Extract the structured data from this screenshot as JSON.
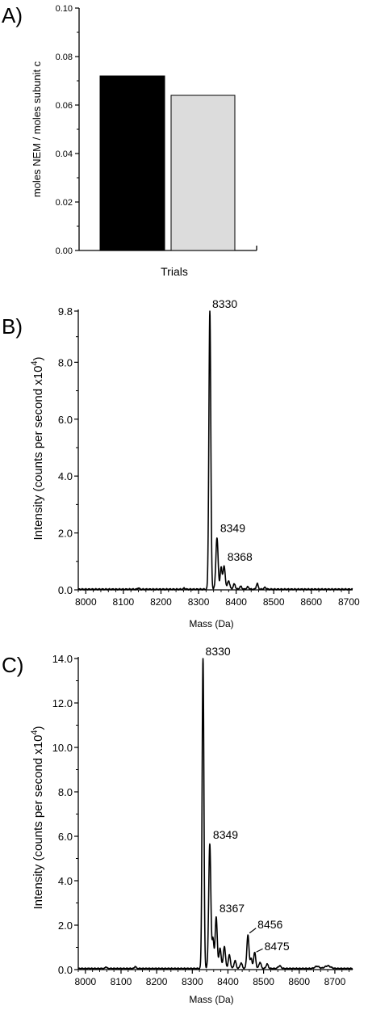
{
  "panels": [
    {
      "id": "A",
      "panel_label": "A)",
      "chart_data": {
        "type": "bar",
        "categories": [
          "",
          ""
        ],
        "values": [
          0.072,
          0.064
        ],
        "colors": [
          "#000000",
          "#dcdcdc"
        ],
        "xlabel": "Trials",
        "ylabel": "moles NEM / moles subunit c",
        "ylim": [
          0,
          0.1
        ],
        "yticks": [
          "0.00",
          "0.02",
          "0.04",
          "0.06",
          "0.08",
          "0.10"
        ],
        "grid": false
      }
    },
    {
      "id": "B",
      "panel_label": "B)",
      "chart_data": {
        "type": "line",
        "xlabel": "Mass (Da)",
        "ylabel": "Intensity (counts per second x10",
        "ylabel_sup": "4",
        "ylabel_close": ")",
        "xlim": [
          7980,
          8710
        ],
        "ylim": [
          0,
          9.8
        ],
        "xticks": [
          "8000",
          "8100",
          "8200",
          "8300",
          "8400",
          "8500",
          "8600",
          "8700"
        ],
        "yticks": [
          "0.0",
          "2.0",
          "4.0",
          "6.0",
          "8.0",
          "9.8"
        ],
        "baseline": 0.02,
        "peaks": [
          {
            "x": 8330,
            "y": 9.8,
            "w": 2.5
          },
          {
            "x": 8349,
            "y": 1.8,
            "w": 3.0
          },
          {
            "x": 8360,
            "y": 0.75,
            "w": 2.5
          },
          {
            "x": 8368,
            "y": 0.8,
            "w": 3.0
          },
          {
            "x": 8380,
            "y": 0.3,
            "w": 3.0
          },
          {
            "x": 8395,
            "y": 0.18,
            "w": 3.0
          },
          {
            "x": 8412,
            "y": 0.1,
            "w": 3.0
          },
          {
            "x": 8431,
            "y": 0.08,
            "w": 3.0
          },
          {
            "x": 8456,
            "y": 0.2,
            "w": 2.5
          },
          {
            "x": 8477,
            "y": 0.06,
            "w": 3.0
          },
          {
            "x": 8140,
            "y": 0.05,
            "w": 2.0
          },
          {
            "x": 8262,
            "y": 0.04,
            "w": 2.0
          }
        ],
        "annotations": [
          {
            "text": "8330",
            "x": 8330,
            "y": 9.8
          },
          {
            "text": "8349",
            "x": 8349,
            "y": 1.8
          },
          {
            "text": "8368",
            "x": 8368,
            "y": 0.8
          }
        ],
        "grid": false
      }
    },
    {
      "id": "C",
      "panel_label": "C)",
      "chart_data": {
        "type": "line",
        "xlabel": "Mass (Da)",
        "ylabel": "Intensity (counts per second x10",
        "ylabel_sup": "4",
        "ylabel_close": ")",
        "xlim": [
          7980,
          8750
        ],
        "ylim": [
          0,
          14.0
        ],
        "xticks": [
          "8000",
          "8100",
          "8200",
          "8300",
          "8400",
          "8500",
          "8600",
          "8700"
        ],
        "yticks": [
          "0.0",
          "2.0",
          "4.0",
          "6.0",
          "8.0",
          "10.0",
          "12.0",
          "14.0"
        ],
        "baseline": 0.05,
        "peaks": [
          {
            "x": 8330,
            "y": 14.0,
            "w": 2.5
          },
          {
            "x": 8349,
            "y": 5.6,
            "w": 3.0
          },
          {
            "x": 8358,
            "y": 1.3,
            "w": 2.5
          },
          {
            "x": 8367,
            "y": 2.3,
            "w": 3.0
          },
          {
            "x": 8378,
            "y": 0.9,
            "w": 3.0
          },
          {
            "x": 8390,
            "y": 1.0,
            "w": 3.0
          },
          {
            "x": 8404,
            "y": 0.6,
            "w": 3.0
          },
          {
            "x": 8420,
            "y": 0.35,
            "w": 3.0
          },
          {
            "x": 8437,
            "y": 0.25,
            "w": 3.0
          },
          {
            "x": 8456,
            "y": 1.5,
            "w": 3.0
          },
          {
            "x": 8465,
            "y": 0.45,
            "w": 2.5
          },
          {
            "x": 8475,
            "y": 0.72,
            "w": 3.0
          },
          {
            "x": 8490,
            "y": 0.28,
            "w": 3.0
          },
          {
            "x": 8510,
            "y": 0.2,
            "w": 3.0
          },
          {
            "x": 8545,
            "y": 0.12,
            "w": 4.0
          },
          {
            "x": 8650,
            "y": 0.1,
            "w": 6.0
          },
          {
            "x": 8680,
            "y": 0.12,
            "w": 8.0
          },
          {
            "x": 8058,
            "y": 0.08,
            "w": 2.0
          },
          {
            "x": 8140,
            "y": 0.1,
            "w": 2.0
          }
        ],
        "annotations": [
          {
            "text": "8330",
            "x": 8330,
            "y": 14.0
          },
          {
            "text": "8349",
            "x": 8349,
            "y": 5.6
          },
          {
            "text": "8367",
            "x": 8367,
            "y": 2.3
          },
          {
            "text": "8456",
            "x": 8456,
            "y": 1.5
          },
          {
            "text": "8475",
            "x": 8475,
            "y": 0.72
          }
        ],
        "grid": false
      }
    }
  ]
}
